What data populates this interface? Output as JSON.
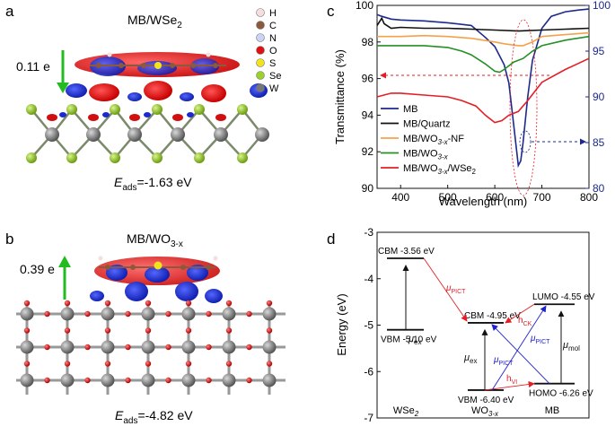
{
  "panel_labels": {
    "a": "a",
    "b": "b",
    "c": "c",
    "d": "d"
  },
  "panel_a": {
    "title": "MB/WSe",
    "title_sub": "2",
    "charge": "0.11 e",
    "energy_label_main": "E",
    "energy_label_sub": "ads",
    "energy_value": "=-1.63 eV",
    "legend": [
      {
        "symbol": "H",
        "color": "#f6dede"
      },
      {
        "symbol": "C",
        "color": "#8b5a3c"
      },
      {
        "symbol": "N",
        "color": "#c9d4f2"
      },
      {
        "symbol": "O",
        "color": "#dd1111"
      },
      {
        "symbol": "S",
        "color": "#f2e31c"
      },
      {
        "symbol": "Se",
        "color": "#9cd12b"
      },
      {
        "symbol": "W",
        "color": "#777777"
      }
    ]
  },
  "panel_b": {
    "title": "MB/WO",
    "title_sub": "3-x",
    "charge": "0.39 e",
    "energy_label_main": "E",
    "energy_label_sub": "ads",
    "energy_value": "=-4.82 eV"
  },
  "chart_data": [
    {
      "type": "line",
      "panel": "c",
      "xlabel": "Wavelength (nm)",
      "ylabel": "Transmittance (%)",
      "xlim": [
        350,
        800
      ],
      "ylim": [
        90,
        100
      ],
      "y2lim": [
        80,
        100
      ],
      "xticks": [
        400,
        500,
        600,
        700,
        800
      ],
      "yticks": [
        90,
        92,
        94,
        96,
        98,
        100
      ],
      "y2ticks": [
        80,
        85,
        90,
        95,
        100
      ],
      "series": [
        {
          "name": "MB",
          "axis": "right",
          "color": "#1c2a8c",
          "x": [
            350,
            360,
            380,
            400,
            450,
            500,
            550,
            580,
            600,
            610,
            620,
            630,
            640,
            650,
            655,
            660,
            670,
            680,
            700,
            720,
            750,
            780,
            800
          ],
          "y": [
            99.0,
            98.8,
            98.5,
            98.4,
            98.3,
            98.1,
            97.8,
            96.5,
            95.5,
            94.5,
            93.5,
            91.5,
            87,
            82.5,
            83,
            85,
            90,
            94,
            97.5,
            98.8,
            99.3,
            99.5,
            99.6
          ]
        },
        {
          "name": "MB/Quartz",
          "color": "#111111",
          "x": [
            350,
            360,
            365,
            380,
            400,
            450,
            500,
            550,
            600,
            650,
            700,
            750,
            800
          ],
          "y": [
            98.9,
            99.3,
            99.0,
            98.75,
            98.8,
            98.75,
            98.75,
            98.7,
            98.65,
            98.6,
            98.65,
            98.7,
            98.75
          ]
        },
        {
          "name": "MB/WO3-x-NF",
          "label_main": "MB/WO",
          "label_sub": "3-x",
          "label_tail": "-NF",
          "color": "#f4a24a",
          "x": [
            350,
            400,
            450,
            500,
            550,
            600,
            620,
            650,
            660,
            680,
            700,
            750,
            800
          ],
          "y": [
            98.3,
            98.3,
            98.35,
            98.3,
            98.2,
            98.0,
            97.9,
            97.8,
            97.8,
            98.0,
            98.3,
            98.4,
            98.5
          ]
        },
        {
          "name": "MB/WO3-x",
          "label_main": "MB/WO",
          "label_sub": "3-x",
          "label_tail": "",
          "color": "#239023",
          "x": [
            350,
            400,
            450,
            500,
            530,
            550,
            580,
            600,
            610,
            620,
            640,
            660,
            680,
            700,
            750,
            800
          ],
          "y": [
            97.8,
            97.8,
            97.8,
            97.7,
            97.5,
            97.3,
            96.8,
            96.4,
            96.35,
            96.5,
            96.9,
            97.1,
            97.5,
            97.8,
            98.1,
            98.3
          ]
        },
        {
          "name": "MB/WO3-x/WSe2",
          "label_main": "MB/WO",
          "label_sub": "3-x",
          "label_tail": "/WSe",
          "label_sub2": "2",
          "color": "#e41e26",
          "x": [
            350,
            380,
            400,
            450,
            500,
            530,
            560,
            580,
            600,
            615,
            630,
            650,
            670,
            700,
            750,
            800
          ],
          "y": [
            95.0,
            95.2,
            95.2,
            95.1,
            95.0,
            94.8,
            94.5,
            94.0,
            93.6,
            93.7,
            94.0,
            94.2,
            94.8,
            95.8,
            96.5,
            97.1
          ]
        }
      ]
    },
    {
      "type": "diagram",
      "panel": "d",
      "ylabel": "Energy (eV)",
      "ylim": [
        -7,
        -3
      ],
      "yticks": [
        -7,
        -6,
        -5,
        -4,
        -3
      ],
      "levels": [
        {
          "label": "CBM -3.56 eV",
          "value": -3.56,
          "material": "WSe2"
        },
        {
          "label": "VBM -5.10 eV",
          "value": -5.1,
          "material": "WSe2"
        },
        {
          "label": "CBM -4.95 eV",
          "value": -4.95,
          "material": "WO3-x"
        },
        {
          "label": "VBM -6.40 eV",
          "value": -6.4,
          "material": "WO3-x"
        },
        {
          "label": "LUMO -4.55 eV",
          "value": -4.55,
          "material": "MB"
        },
        {
          "label": "HOMO -6.26 eV",
          "value": -6.26,
          "material": "MB"
        }
      ],
      "materials": [
        {
          "main": "WSe",
          "sub": "2"
        },
        {
          "main": "WO",
          "sub": "3-x"
        },
        {
          "main": "MB",
          "sub": ""
        }
      ],
      "annotations": {
        "mu": "μ",
        "pict": "PICT",
        "ex": "ex",
        "mol": "mol",
        "h": "h",
        "ck": "CK",
        "vi": "VI"
      }
    }
  ]
}
